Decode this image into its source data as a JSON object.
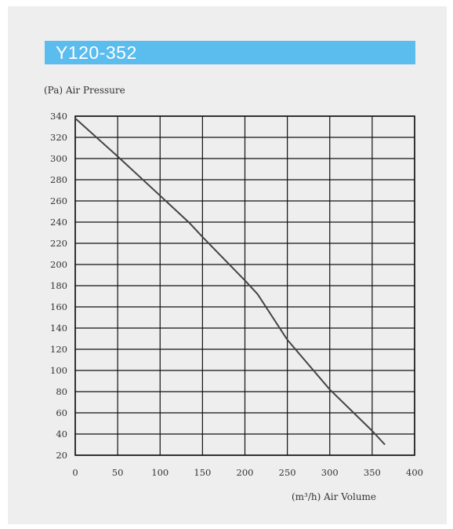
{
  "title": "Y120-352",
  "y_axis_label": "(Pa) Air Pressure",
  "x_axis_label": "(m³/h) Air Volume",
  "colors": {
    "title_bar": "#5bbcee",
    "grid": "#111111",
    "curve": "#444444",
    "background": "#eeeeee"
  },
  "chart_data": {
    "type": "line",
    "title": "Y120-352",
    "xlabel": "(m³/h) Air Volume",
    "ylabel": "(Pa) Air Pressure",
    "xlim": [
      0,
      400
    ],
    "ylim": [
      20,
      340
    ],
    "x_ticks": [
      0,
      50,
      100,
      150,
      200,
      250,
      300,
      350,
      400
    ],
    "y_ticks": [
      20,
      40,
      60,
      80,
      100,
      120,
      140,
      160,
      180,
      200,
      220,
      240,
      260,
      280,
      300,
      320,
      340
    ],
    "grid": true,
    "series": [
      {
        "x": [
          0,
          50,
          100,
          135,
          150,
          200,
          215,
          250,
          300,
          350,
          365
        ],
        "y": [
          338,
          302,
          265,
          239,
          226,
          185,
          172,
          129,
          82,
          43,
          30
        ]
      }
    ]
  }
}
